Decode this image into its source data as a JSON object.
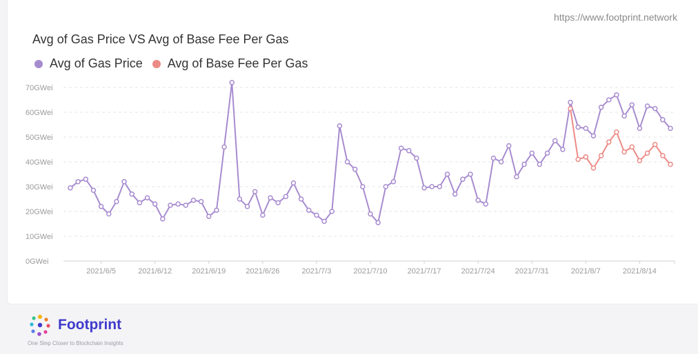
{
  "watermark": "https://www.footprint.network",
  "brand": {
    "name": "Footprint",
    "tagline": "One Step Closer to Blockchain Insights"
  },
  "colors": {
    "gas_price": "#a78bcf",
    "base_fee": "#ec8a85",
    "axis_text": "#9a9a9a",
    "grid": "#e6e6e6"
  },
  "chart_data": {
    "type": "line",
    "title": "Avg of Gas Price VS Avg of Base Fee Per Gas",
    "xlabel": "",
    "ylabel": "",
    "ylim": [
      0,
      70
    ],
    "y_ticks": [
      "0GWei",
      "10GWei",
      "20GWei",
      "30GWei",
      "40GWei",
      "50GWei",
      "60GWei",
      "70GWei"
    ],
    "x_ticks": [
      "2021/6/5",
      "2021/6/12",
      "2021/6/19",
      "2021/6/26",
      "2021/7/3",
      "2021/7/10",
      "2021/7/17",
      "2021/7/24",
      "2021/7/31",
      "2021/8/7",
      "2021/8/14"
    ],
    "x_start": "2021/6/1",
    "x_end": "2021/8/17",
    "legend_position": "top-left",
    "series": [
      {
        "name": "Avg of Gas Price",
        "color": "#a78bcf",
        "values": [
          29.5,
          32,
          33,
          28.5,
          22,
          19,
          24,
          32,
          27,
          23.5,
          25.5,
          23,
          17,
          22.5,
          23,
          22.5,
          24.5,
          24,
          18,
          20.5,
          46,
          72,
          25,
          22,
          28,
          18.5,
          25.5,
          23.5,
          26,
          31.5,
          25,
          20.5,
          18.5,
          16,
          20,
          54.5,
          40,
          37,
          30,
          19,
          15.5,
          30,
          32,
          45.5,
          44.5,
          41.5,
          29.5,
          30,
          30,
          35,
          27,
          33,
          35,
          24.5,
          23,
          41.5,
          40,
          46.5,
          34,
          39,
          43.5,
          39,
          43.5,
          48.5,
          45,
          64,
          54,
          53.5,
          50.5,
          62,
          65,
          67,
          58.5,
          63,
          53.5,
          62.5,
          61.5,
          57,
          53.5
        ]
      },
      {
        "name": "Avg of Base Fee Per Gas",
        "color": "#ec8a85",
        "start_index": 65,
        "values": [
          61.5,
          41,
          42,
          37.5,
          42.5,
          48,
          52,
          44,
          46,
          40.5,
          43.5,
          47,
          42.5,
          39
        ]
      }
    ]
  }
}
